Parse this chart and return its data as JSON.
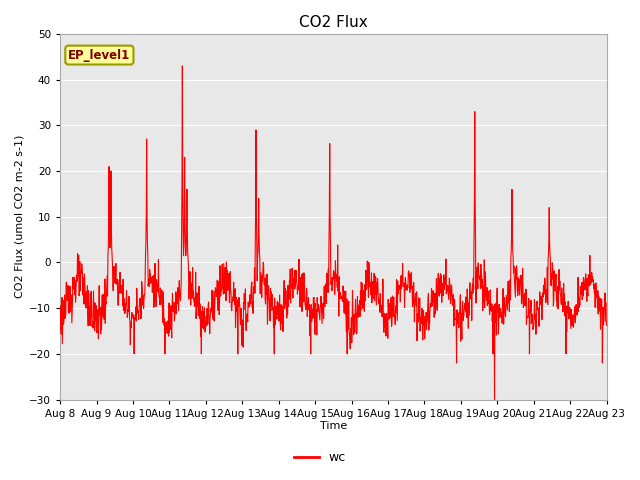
{
  "title": "CO2 Flux",
  "xlabel": "Time",
  "ylabel": "CO2 Flux (umol CO2 m-2 s-1)",
  "ylim": [
    -30,
    50
  ],
  "yticks": [
    -30,
    -20,
    -10,
    0,
    10,
    20,
    30,
    40,
    50
  ],
  "xlim": [
    8,
    23
  ],
  "x_start_day": 8,
  "x_end_day": 23,
  "x_month": "Aug",
  "line_color": "#ff0000",
  "line_width": 0.8,
  "plot_bg_color": "#e8e8e8",
  "fig_bg_color": "#ffffff",
  "annotation_text": "EP_level1",
  "annotation_bg": "#ffff99",
  "annotation_border": "#999900",
  "legend_label": "wc",
  "title_fontsize": 11,
  "axis_fontsize": 8,
  "tick_fontsize": 7.5,
  "grid_color": "#ffffff",
  "grid_linewidth": 0.8
}
